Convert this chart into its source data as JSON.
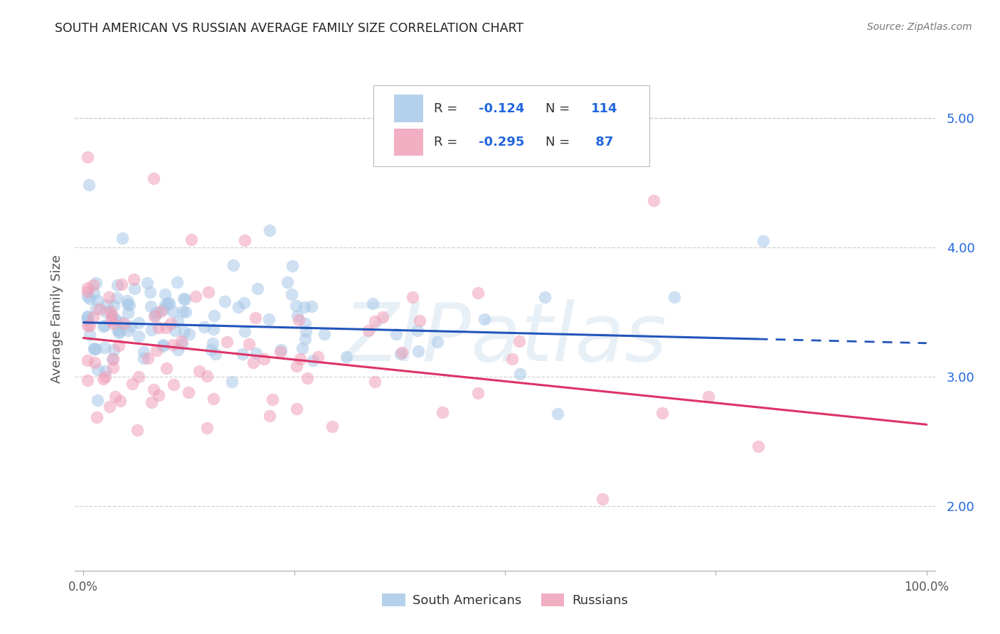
{
  "title": "SOUTH AMERICAN VS RUSSIAN AVERAGE FAMILY SIZE CORRELATION CHART",
  "source": "Source: ZipAtlas.com",
  "ylabel": "Average Family Size",
  "watermark": "ZIPatlas",
  "right_yticks": [
    2.0,
    3.0,
    4.0,
    5.0
  ],
  "blue_color": "#a8c8e8",
  "pink_color": "#f0a0b8",
  "blue_line_color": "#2255bb",
  "pink_line_color": "#dd3366",
  "accent_color": "#2266dd",
  "text_color": "#333333",
  "background_color": "#ffffff",
  "grid_color": "#cccccc",
  "blue_r": "-0.124",
  "blue_n": "114",
  "pink_r": "-0.295",
  "pink_n": "87",
  "blue_trend_y0": 3.42,
  "blue_trend_y1": 3.26,
  "pink_trend_y0": 3.3,
  "pink_trend_y1": 2.63,
  "ymin": 1.5,
  "ymax": 5.4,
  "xmin": 0,
  "xmax": 100
}
